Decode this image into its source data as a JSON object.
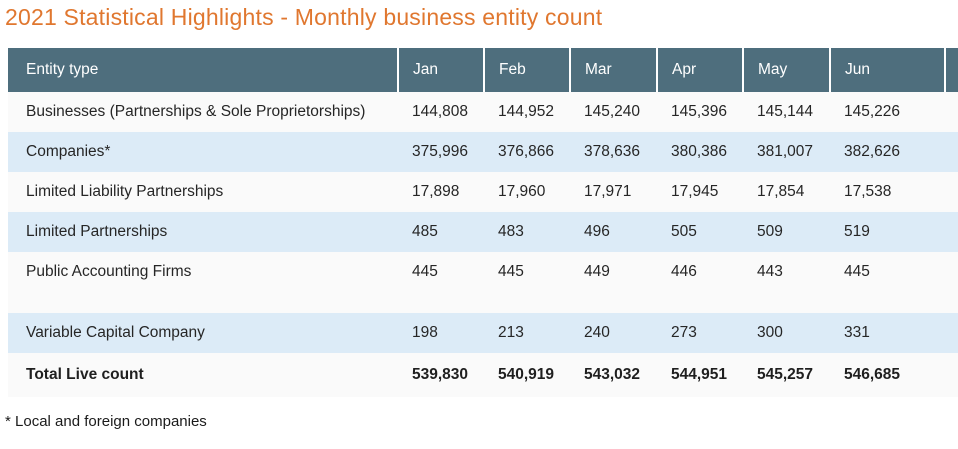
{
  "colors": {
    "title_accent": "#e0772f",
    "header_bg": "#4e6e7d",
    "row_blue": "#dcebf7",
    "row_plain": "#fafafa",
    "header_text": "#ffffff"
  },
  "chart_data": {
    "type": "table",
    "title": "2021 Statistical Highlights - Monthly business entity count",
    "columns": [
      "Entity type",
      "Jan",
      "Feb",
      "Mar",
      "Apr",
      "May",
      "Jun"
    ],
    "rows": [
      {
        "label": "Businesses (Partnerships & Sole Proprietorships)",
        "values": [
          "144,808",
          "144,952",
          "145,240",
          "145,396",
          "145,144",
          "145,226"
        ]
      },
      {
        "label": "Companies*",
        "values": [
          "375,996",
          "376,866",
          "378,636",
          "380,386",
          "381,007",
          "382,626"
        ]
      },
      {
        "label": "Limited Liability Partnerships",
        "values": [
          "17,898",
          "17,960",
          "17,971",
          "17,945",
          "17,854",
          "17,538"
        ]
      },
      {
        "label": "Limited Partnerships",
        "values": [
          "485",
          "483",
          "496",
          "505",
          "509",
          "519"
        ]
      },
      {
        "label": "Public Accounting Firms",
        "values": [
          "445",
          "445",
          "449",
          "446",
          "443",
          "445"
        ]
      },
      {
        "label": "",
        "values": [
          "",
          "",
          "",
          "",
          "",
          ""
        ]
      },
      {
        "label": "Variable Capital Company",
        "values": [
          "198",
          "213",
          "240",
          "273",
          "300",
          "331"
        ]
      }
    ],
    "total_row": {
      "label": "Total Live count",
      "values": [
        "539,830",
        "540,919",
        "543,032",
        "544,951",
        "545,257",
        "546,685"
      ]
    },
    "footnote": "* Local and foreign companies"
  }
}
